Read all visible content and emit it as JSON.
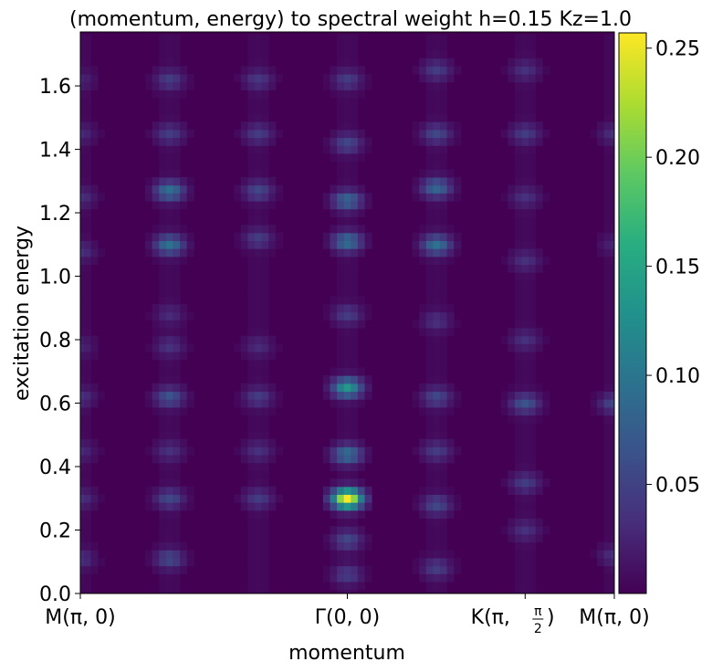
{
  "chart_data": {
    "type": "heatmap",
    "title": "(momentum, energy) to spectral weight h=0.15 Kz=1.0",
    "xlabel": "momentum",
    "ylabel": "excitation energy",
    "x_ticks": [
      {
        "pos": 0.0,
        "main": "M(π, 0)",
        "sup": ""
      },
      {
        "pos": 0.5,
        "main": "Γ(0, 0)",
        "sup": ""
      },
      {
        "pos": 0.833,
        "main": "K(π, ",
        "frac_num": "π",
        "frac_den": "2",
        "tail": ")"
      },
      {
        "pos": 1.0,
        "main": "M(π, 0)",
        "sup": ""
      }
    ],
    "ylim": [
      0.0,
      1.77
    ],
    "y_ticks": [
      "0.0",
      "0.2",
      "0.4",
      "0.6",
      "0.8",
      "1.0",
      "1.2",
      "1.4",
      "1.6"
    ],
    "y_tick_values": [
      0.0,
      0.2,
      0.4,
      0.6,
      0.8,
      1.0,
      1.2,
      1.4,
      1.6
    ],
    "colorbar": {
      "min": 0.0,
      "max": 0.257,
      "ticks": [
        0.05,
        0.1,
        0.15,
        0.2,
        0.25
      ],
      "tick_labels": [
        "0.05",
        "0.10",
        "0.15",
        "0.20",
        "0.25"
      ],
      "colormap": "viridis"
    },
    "columns": [
      {
        "x": 0.0,
        "peaks": [
          [
            0.11,
            0.03
          ],
          [
            0.3,
            0.03
          ],
          [
            0.45,
            0.025
          ],
          [
            0.62,
            0.03
          ],
          [
            0.78,
            0.02
          ],
          [
            1.08,
            0.03
          ],
          [
            1.25,
            0.03
          ],
          [
            1.45,
            0.025
          ],
          [
            1.62,
            0.02
          ]
        ]
      },
      {
        "x": 0.167,
        "peaks": [
          [
            0.11,
            0.05
          ],
          [
            0.3,
            0.05
          ],
          [
            0.45,
            0.03
          ],
          [
            0.62,
            0.06
          ],
          [
            0.78,
            0.03
          ],
          [
            0.88,
            0.025
          ],
          [
            1.1,
            0.09
          ],
          [
            1.27,
            0.09
          ],
          [
            1.45,
            0.04
          ],
          [
            1.62,
            0.04
          ]
        ]
      },
      {
        "x": 0.333,
        "peaks": [
          [
            0.3,
            0.04
          ],
          [
            0.45,
            0.03
          ],
          [
            0.62,
            0.04
          ],
          [
            0.78,
            0.025
          ],
          [
            1.12,
            0.04
          ],
          [
            1.27,
            0.05
          ],
          [
            1.45,
            0.04
          ],
          [
            1.62,
            0.035
          ]
        ]
      },
      {
        "x": 0.5,
        "peaks": [
          [
            0.06,
            0.04
          ],
          [
            0.17,
            0.05
          ],
          [
            0.3,
            0.257
          ],
          [
            0.44,
            0.09
          ],
          [
            0.65,
            0.13
          ],
          [
            0.88,
            0.04
          ],
          [
            1.11,
            0.09
          ],
          [
            1.24,
            0.08
          ],
          [
            1.42,
            0.05
          ],
          [
            1.62,
            0.04
          ]
        ]
      },
      {
        "x": 0.667,
        "peaks": [
          [
            0.08,
            0.04
          ],
          [
            0.28,
            0.05
          ],
          [
            0.45,
            0.04
          ],
          [
            0.62,
            0.05
          ],
          [
            0.86,
            0.03
          ],
          [
            1.1,
            0.09
          ],
          [
            1.28,
            0.08
          ],
          [
            1.45,
            0.05
          ],
          [
            1.65,
            0.04
          ]
        ]
      },
      {
        "x": 0.833,
        "peaks": [
          [
            0.2,
            0.03
          ],
          [
            0.35,
            0.04
          ],
          [
            0.6,
            0.06
          ],
          [
            0.8,
            0.03
          ],
          [
            1.05,
            0.03
          ],
          [
            1.25,
            0.03
          ],
          [
            1.45,
            0.04
          ],
          [
            1.65,
            0.03
          ]
        ]
      },
      {
        "x": 1.0,
        "peaks": [
          [
            0.12,
            0.03
          ],
          [
            0.6,
            0.05
          ],
          [
            1.1,
            0.02
          ],
          [
            1.45,
            0.03
          ]
        ]
      }
    ]
  }
}
